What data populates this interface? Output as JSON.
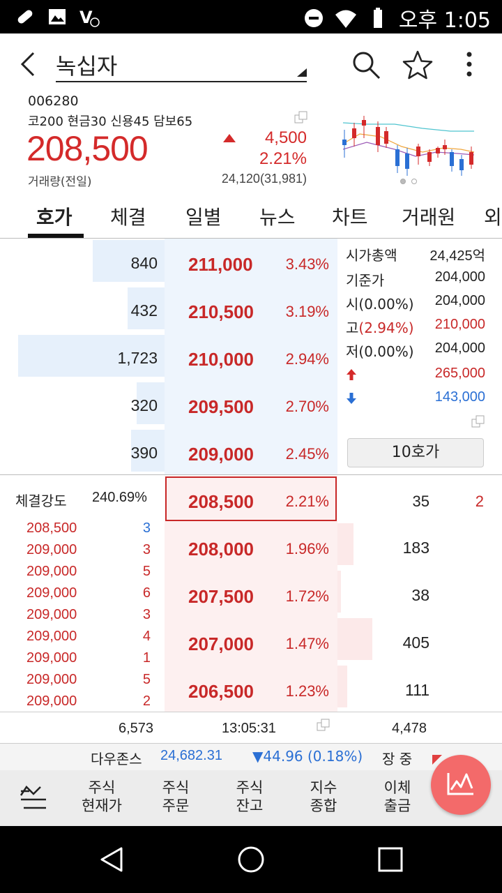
{
  "status_bar": {
    "time": "오후 1:05",
    "app_badge": "V"
  },
  "header": {
    "title": "녹십자"
  },
  "summary": {
    "code": "006280",
    "tags": "코200 현금30 신용45 담보65",
    "price": "208,500",
    "change": "4,500",
    "change_pct": "2.21%",
    "volume_label": "거래량(전일)",
    "volume": "24,120(31,981)"
  },
  "tabs": [
    "호가",
    "체결",
    "일별",
    "뉴스",
    "차트",
    "거래원",
    "외"
  ],
  "sell_orders": [
    {
      "qty": "840",
      "price": "211,000",
      "pct": "3.43%",
      "bar": 0.49
    },
    {
      "qty": "432",
      "price": "210,500",
      "pct": "3.19%",
      "bar": 0.25
    },
    {
      "qty": "1,723",
      "price": "210,000",
      "pct": "2.94%",
      "bar": 1.0
    },
    {
      "qty": "320",
      "price": "209,500",
      "pct": "2.70%",
      "bar": 0.19
    },
    {
      "qty": "390",
      "price": "209,000",
      "pct": "2.45%",
      "bar": 0.23
    }
  ],
  "info": {
    "rows": [
      {
        "k": "시가총액",
        "v": "24,425억"
      },
      {
        "k": "기준가",
        "v": "204,000"
      },
      {
        "k": "시(0.00%)",
        "v": "204,000"
      },
      {
        "k": "고(2.94%)",
        "v": "210,000"
      },
      {
        "k": "저(0.00%)",
        "v": "204,000"
      },
      {
        "k": "",
        "v": "265,000"
      },
      {
        "k": "",
        "v": "143,000"
      }
    ],
    "button_10": "10호가"
  },
  "current": {
    "price": "208,500",
    "pct": "2.21%",
    "right_qty": "35",
    "right_count": "2"
  },
  "strength": {
    "label": "체결강도",
    "value": "240.69%"
  },
  "ticks": [
    {
      "price": "208,500",
      "qty": "3"
    },
    {
      "price": "209,000",
      "qty": "3"
    },
    {
      "price": "209,000",
      "qty": "5"
    },
    {
      "price": "209,000",
      "qty": "6"
    },
    {
      "price": "209,000",
      "qty": "3"
    },
    {
      "price": "209,000",
      "qty": "4"
    },
    {
      "price": "209,000",
      "qty": "1"
    },
    {
      "price": "209,000",
      "qty": "5"
    },
    {
      "price": "209,000",
      "qty": "2"
    }
  ],
  "buy_orders": [
    {
      "price": "208,000",
      "pct": "1.96%",
      "qty": "183",
      "bar": 0.45
    },
    {
      "price": "207,500",
      "pct": "1.72%",
      "qty": "38",
      "bar": 0.09
    },
    {
      "price": "207,000",
      "pct": "1.47%",
      "qty": "405",
      "bar": 1.0
    },
    {
      "price": "206,500",
      "pct": "1.23%",
      "qty": "111",
      "bar": 0.27
    }
  ],
  "strip": {
    "sell_total": "6,573",
    "time": "13:05:31",
    "buy_total": "4,478"
  },
  "ticker": {
    "name": "다우존스",
    "value": "24,682.31",
    "change": "▼44.96 (0.18%)",
    "status": "장 중"
  },
  "menu": [
    {
      "l1": "주식",
      "l2": "현재가"
    },
    {
      "l1": "주식",
      "l2": "주문"
    },
    {
      "l1": "주식",
      "l2": "잔고"
    },
    {
      "l1": "지수",
      "l2": "종합"
    },
    {
      "l1": "이체",
      "l2": "출금"
    }
  ],
  "colors": {
    "up": "#c82828",
    "down": "#2a6fd4",
    "sell_bg": "#eef5fd",
    "buy_bg": "#fdf0f0",
    "fab": "#f36a6a"
  }
}
